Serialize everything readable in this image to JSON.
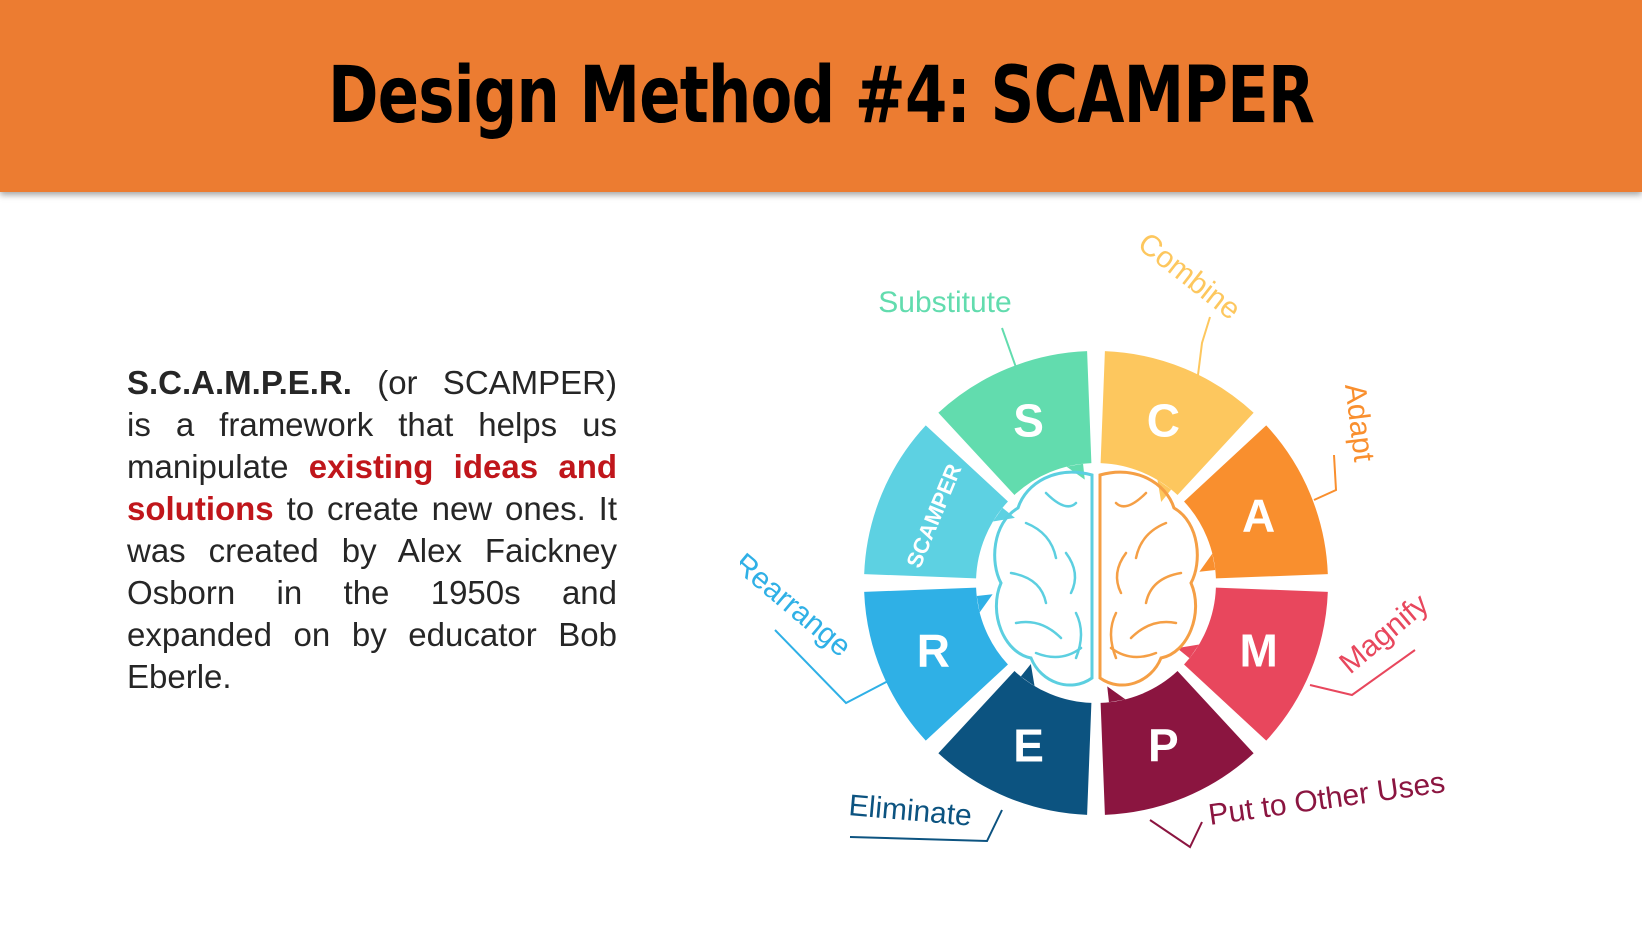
{
  "header": {
    "title": "Design Method #4: SCAMPER",
    "background": "#ec7c31"
  },
  "description": {
    "lead_bold": "S.C.A.M.P.E.R.",
    "text_1": " (or SCAMPER) is a framework that helps us manipulate ",
    "highlight": "existing ideas and solutions",
    "text_2": " to create new ones. It was created by Alex Faickney Osborn in the 1950s and expanded on by educator Bob Eberle.",
    "highlight_color": "#c0161b"
  },
  "diagram": {
    "center_label": "SCAMPER",
    "segments": [
      {
        "letter": "S",
        "label": "Substitute",
        "color": "#62dcae"
      },
      {
        "letter": "C",
        "label": "Combine",
        "color": "#fdc75e"
      },
      {
        "letter": "A",
        "label": "Adapt",
        "color": "#f98f2e"
      },
      {
        "letter": "M",
        "label": "Magnify",
        "color": "#e8475d"
      },
      {
        "letter": "P",
        "label": "Put to Other Uses",
        "color": "#8b1540"
      },
      {
        "letter": "E",
        "label": "Eliminate",
        "color": "#0c5380"
      },
      {
        "letter": "R",
        "label": "Rearrange",
        "color": "#2fb0e6"
      }
    ],
    "brain": {
      "left_color": "#5ccfe0",
      "right_color": "#f59f45"
    },
    "center_segment_color": "#5dd1e2"
  }
}
